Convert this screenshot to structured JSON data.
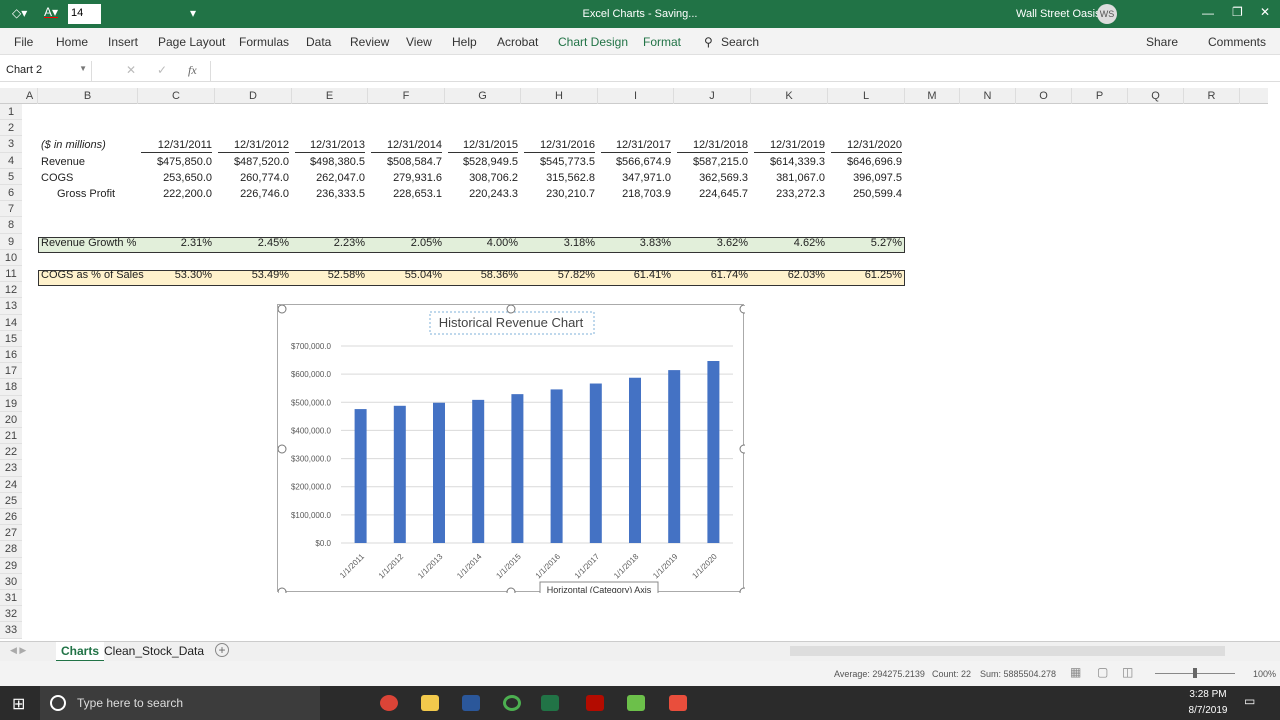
{
  "titlebar": {
    "font_size": "14",
    "doc_title": "Excel Charts  -  Saving...",
    "user": "Wall Street Oasis",
    "initials": "WS"
  },
  "ribbon": {
    "tabs": [
      "File",
      "Home",
      "Insert",
      "Page Layout",
      "Formulas",
      "Data",
      "Review",
      "View",
      "Help",
      "Acrobat",
      "Chart Design",
      "Format"
    ],
    "search": "Search",
    "share": "Share",
    "comments": "Comments"
  },
  "formula_bar": {
    "name_box": "Chart 2",
    "fx": "fx",
    "value": ""
  },
  "columns": [
    "A",
    "B",
    "C",
    "D",
    "E",
    "F",
    "G",
    "H",
    "I",
    "J",
    "K",
    "L",
    "M",
    "N",
    "O",
    "P",
    "Q",
    "R"
  ],
  "rows": [
    "1",
    "2",
    "3",
    "4",
    "5",
    "6",
    "7",
    "8",
    "9",
    "10",
    "11",
    "12",
    "13",
    "14",
    "15",
    "16",
    "17",
    "18",
    "19",
    "20",
    "21",
    "22",
    "23",
    "24",
    "25",
    "26",
    "27",
    "28",
    "29",
    "30",
    "31",
    "32",
    "33"
  ],
  "table": {
    "units_label": "($ in millions)",
    "dates": [
      "12/31/2011",
      "12/31/2012",
      "12/31/2013",
      "12/31/2014",
      "12/31/2015",
      "12/31/2016",
      "12/31/2017",
      "12/31/2018",
      "12/31/2019",
      "12/31/2020"
    ],
    "revenue_label": "Revenue",
    "revenue": [
      "$475,850.0",
      "$487,520.0",
      "$498,380.5",
      "$508,584.7",
      "$528,949.5",
      "$545,773.5",
      "$566,674.9",
      "$587,215.0",
      "$614,339.3",
      "$646,696.9"
    ],
    "cogs_label": "COGS",
    "cogs": [
      "253,650.0",
      "260,774.0",
      "262,047.0",
      "279,931.6",
      "308,706.2",
      "315,562.8",
      "347,971.0",
      "362,569.3",
      "381,067.0",
      "396,097.5"
    ],
    "gp_label": "Gross Profit",
    "gp": [
      "222,200.0",
      "226,746.0",
      "236,333.5",
      "228,653.1",
      "220,243.3",
      "230,210.7",
      "218,703.9",
      "224,645.7",
      "233,272.3",
      "250,599.4"
    ],
    "growth_label": "Revenue Growth %",
    "growth": [
      "2.31%",
      "2.45%",
      "2.23%",
      "2.05%",
      "4.00%",
      "3.18%",
      "3.83%",
      "3.62%",
      "4.62%",
      "5.27%"
    ],
    "cogs_pct_label": "COGS as % of Sales",
    "cogs_pct": [
      "53.30%",
      "53.49%",
      "52.58%",
      "55.04%",
      "58.36%",
      "57.82%",
      "61.41%",
      "61.74%",
      "62.03%",
      "61.25%"
    ]
  },
  "chart_data": {
    "type": "bar",
    "title": "Historical Revenue Chart",
    "categories": [
      "1/1/2011",
      "1/1/2012",
      "1/1/2013",
      "1/1/2014",
      "1/1/2015",
      "1/1/2016",
      "1/1/2017",
      "1/1/2018",
      "1/1/2019",
      "1/1/2020"
    ],
    "values": [
      475850.0,
      487520.0,
      498380.5,
      508584.7,
      528949.5,
      545773.5,
      566674.9,
      587215.0,
      614339.3,
      646696.9
    ],
    "ylim": [
      0,
      700000
    ],
    "yticks": [
      "$0.0",
      "$100,000.0",
      "$200,000.0",
      "$300,000.0",
      "$400,000.0",
      "$500,000.0",
      "$600,000.0",
      "$700,000.0"
    ],
    "grid": true,
    "color": "#4472c4",
    "tooltip": "Horizontal (Category) Axis"
  },
  "sheets": [
    "Charts",
    "Clean_Stock_Data"
  ],
  "status": {
    "average": "Average: 294275.2139",
    "count": "Count: 22",
    "sum": "Sum: 5885504.278",
    "zoom": "100%"
  },
  "taskbar": {
    "search": "Type here to search",
    "time": "3:28 PM",
    "date": "8/7/2019"
  }
}
